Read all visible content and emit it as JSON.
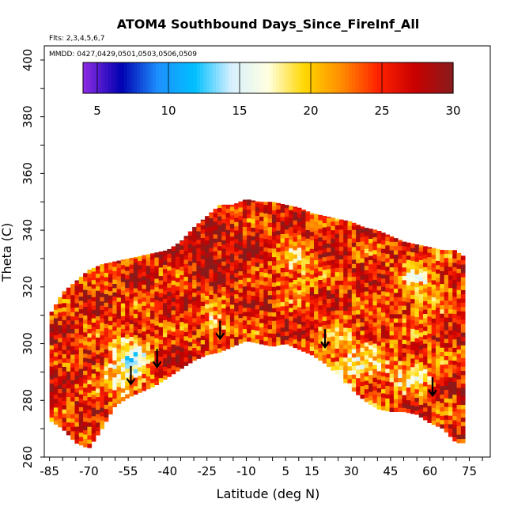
{
  "chart_data": {
    "type": "heatmap",
    "title": "ATOM4 Southbound Days_Since_FireInf_All",
    "flights_note": "Flts: 2,3,4,5,6,7",
    "dates_note": "MMDD: 0427,0429,0501,0503,0506,0509",
    "xlabel": "Latitude (deg N)",
    "ylabel": "Theta (C)",
    "x_ticks": [
      -85,
      -70,
      -55,
      -40,
      -25,
      -10,
      5,
      15,
      30,
      45,
      60,
      75
    ],
    "xlim": [
      -87,
      83
    ],
    "y_ticks": [
      260,
      280,
      300,
      320,
      340,
      360,
      380,
      400
    ],
    "ylim": [
      260,
      405
    ],
    "colorbar": {
      "ticks": [
        5,
        10,
        15,
        20,
        25,
        30
      ],
      "range": [
        4,
        30
      ],
      "colors": [
        "#8a2be2",
        "#0000b0",
        "#1e90ff",
        "#00bfff",
        "#d8f0ff",
        "#ffffe0",
        "#ffd700",
        "#ff8c00",
        "#ff2200",
        "#c80000",
        "#8b1a1a"
      ]
    },
    "envelope": {
      "lat": [
        -85,
        -80,
        -75,
        -70,
        -65,
        -60,
        -55,
        -50,
        -45,
        -40,
        -35,
        -30,
        -25,
        -20,
        -15,
        -10,
        -5,
        0,
        5,
        10,
        15,
        20,
        25,
        30,
        35,
        40,
        45,
        50,
        55,
        60,
        65,
        70,
        72
      ],
      "top": [
        310,
        318,
        322,
        326,
        328,
        329,
        330,
        331,
        332,
        333,
        336,
        341,
        345,
        349,
        349,
        351,
        350,
        350,
        349,
        348,
        346,
        345,
        344,
        343,
        341,
        340,
        338,
        336,
        335,
        334,
        333,
        333,
        331
      ],
      "bottom": [
        273,
        270,
        265,
        263,
        270,
        278,
        281,
        283,
        285,
        288,
        291,
        294,
        296,
        297,
        299,
        301,
        300,
        299,
        300,
        298,
        296,
        293,
        289,
        284,
        280,
        277,
        276,
        276,
        275,
        272,
        270,
        265,
        265
      ]
    },
    "arrows": [
      {
        "lat": -54,
        "theta": 286
      },
      {
        "lat": -44,
        "theta": 292
      },
      {
        "lat": -20,
        "theta": 302
      },
      {
        "lat": 20,
        "theta": 299
      },
      {
        "lat": 61,
        "theta": 282
      }
    ]
  }
}
